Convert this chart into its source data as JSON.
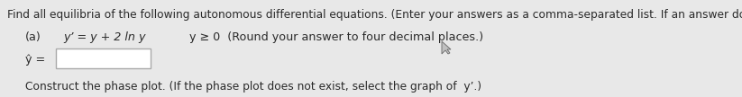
{
  "line1": "Find all equilibria of the following autonomous differential equations. (Enter your answers as a comma-separated list. If an answer does not exist, enter DNE.)",
  "part_a_label": "(a)",
  "part_a_eq": "y’ = y + 2 ln y",
  "part_a_cond": "y ≥ 0  (Round your answer to four decimal places.)",
  "yhat_label": "ŷ =",
  "line4": "Construct the phase plot. (If the phase plot does not exist, select the graph of  y’.)",
  "bg_color": "#e8e8e8",
  "text_color": "#2a2a2a",
  "box_color": "#ffffff",
  "box_edge_color": "#aaaaaa",
  "font_size_line1": 8.8,
  "font_size_body": 9.2,
  "font_size_line4": 8.8
}
